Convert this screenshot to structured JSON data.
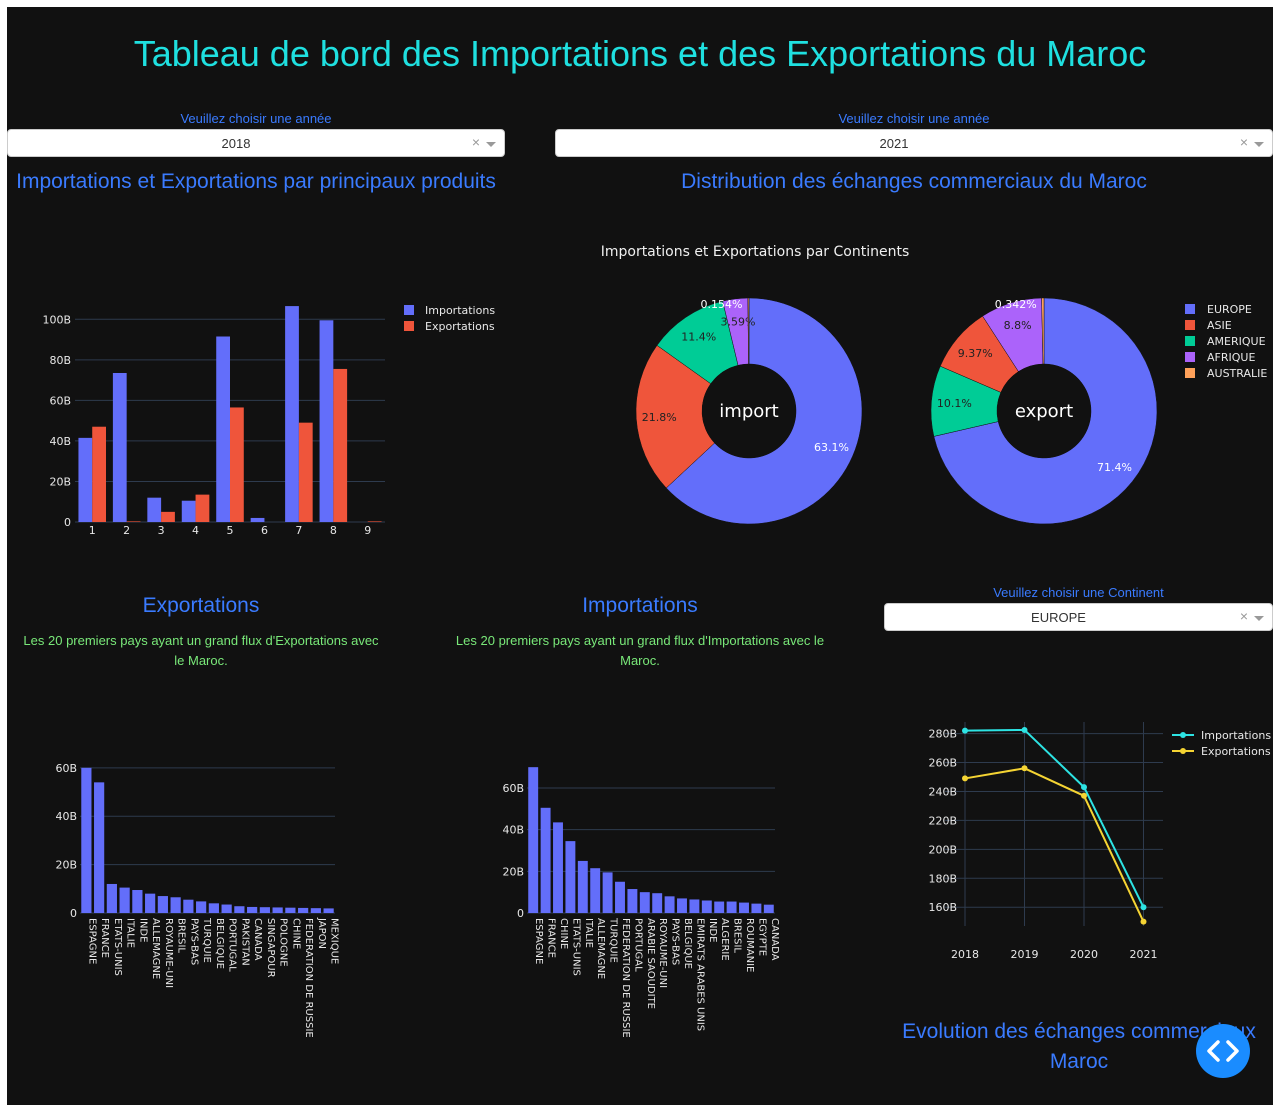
{
  "page": {
    "title": "Tableau de bord des Importations et des Exportations du Maroc"
  },
  "dropdown_left": {
    "label": "Veuillez choisir une année",
    "value": "2018"
  },
  "dropdown_right": {
    "label": "Veuillez choisir une année",
    "value": "2021"
  },
  "dropdown_continent": {
    "label": "Veuillez choisir une Continent",
    "value": "EUROPE"
  },
  "sections": {
    "products_title": "Importations et Exportations par principaux produits",
    "distribution_title": "Distribution des échanges commerciaux du Maroc",
    "exports_title": "Exportations",
    "exports_subtitle": "Les 20 premiers pays ayant un grand flux d'Exportations avec le Maroc.",
    "imports_title": "Importations",
    "imports_subtitle": "Les 20 premiers pays ayant un grand flux d'Importations avec le Maroc.",
    "evolution_title": "Evolution des échanges commerciaux Maroc"
  },
  "colors": {
    "import": "#636efa",
    "export": "#ef553b",
    "amerique": "#00cc96",
    "afrique": "#ab63fa",
    "australie": "#ffa15a",
    "line_import": "#2de3e3",
    "line_export": "#f5d433",
    "title": "#1fe0e0",
    "section": "#3a7bff",
    "subtitle": "#79e879"
  },
  "chart_data": [
    {
      "type": "bar",
      "categories": [
        "1",
        "2",
        "3",
        "4",
        "5",
        "6",
        "7",
        "8",
        "9"
      ],
      "series": [
        {
          "name": "Importations",
          "values": [
            41.5,
            73.5,
            12,
            10.5,
            91.5,
            2,
            106.5,
            99.5,
            0
          ]
        },
        {
          "name": "Exportations",
          "values": [
            47,
            0.3,
            5,
            13.5,
            56.5,
            0,
            49,
            75.5,
            0.3
          ]
        }
      ],
      "ylim": [
        0,
        110
      ],
      "yticks": [
        "0",
        "20B",
        "40B",
        "60B",
        "80B",
        "100B"
      ],
      "legend": "top-right"
    },
    {
      "type": "pie",
      "title": "Importations et Exportations par Continents",
      "charts": [
        {
          "center_label": "import",
          "labels": [
            "EUROPE",
            "ASIE",
            "AMERIQUE",
            "AFRIQUE",
            "AUSTRALIE"
          ],
          "values": [
            63.1,
            21.8,
            11.4,
            3.59,
            0.154
          ],
          "value_labels": [
            "63.1%",
            "21.8%",
            "11.4%",
            "3.59%",
            "0.154%"
          ]
        },
        {
          "center_label": "export",
          "labels": [
            "EUROPE",
            "ASIE",
            "AMERIQUE",
            "AFRIQUE",
            "AUSTRALIE"
          ],
          "values": [
            71.4,
            9.37,
            10.1,
            8.8,
            0.342
          ],
          "value_labels": [
            "71.4%",
            "9.37%",
            "10.1%",
            "8.8%",
            "0.342%"
          ]
        }
      ],
      "legend": [
        "EUROPE",
        "ASIE",
        "AMERIQUE",
        "AFRIQUE",
        "AUSTRALIE"
      ]
    },
    {
      "type": "bar",
      "categories": [
        "ESPAGNE",
        "FRANCE",
        "ETATS-UNIS",
        "ITALIE",
        "INDE",
        "ALLEMAGNE",
        "ROYAUME-UNI",
        "BRESIL",
        "PAYS-BAS",
        "TURQUIE",
        "BELGIQUE",
        "PORTUGAL",
        "PAKISTAN",
        "CANADA",
        "SINGAPOUR",
        "POLOGNE",
        "CHINE",
        "FEDERATION DE RUSSIE",
        "JAPON",
        "MEXIQUE"
      ],
      "values": [
        60,
        54,
        12,
        10.5,
        9.5,
        8,
        7,
        6.5,
        5.5,
        4.8,
        4,
        3.5,
        2.8,
        2.5,
        2.4,
        2.3,
        2.2,
        2.1,
        2,
        1.9
      ],
      "ylim": [
        0,
        62
      ],
      "yticks": [
        "0",
        "20B",
        "40B",
        "60B"
      ]
    },
    {
      "type": "bar",
      "categories": [
        "ESPAGNE",
        "FRANCE",
        "CHINE",
        "ETATS-UNIS",
        "ITALIE",
        "ALLEMAGNE",
        "TURQUIE",
        "FEDERATION DE RUSSIE",
        "PORTUGAL",
        "ARABIE SAOUDITE",
        "ROYAUME-UNI",
        "PAYS-BAS",
        "BELGIQUE",
        "EMIRATS ARABES UNIS",
        "INDE",
        "ALGERIE",
        "BRESIL",
        "ROUMANIE",
        "EGYPTE",
        "CANADA"
      ],
      "values": [
        70,
        50.5,
        43.5,
        34.5,
        25,
        21.5,
        19.5,
        15,
        11.5,
        10,
        9.5,
        8,
        7,
        6.5,
        6,
        5.5,
        5.5,
        5,
        4.5,
        4
      ],
      "ylim": [
        0,
        72
      ],
      "yticks": [
        "0",
        "20B",
        "40B",
        "60B"
      ]
    },
    {
      "type": "line",
      "x": [
        "2018",
        "2019",
        "2020",
        "2021"
      ],
      "series": [
        {
          "name": "Importations",
          "values": [
            282,
            282.5,
            243,
            160
          ]
        },
        {
          "name": "Exportations",
          "values": [
            249,
            256,
            237,
            150
          ]
        }
      ],
      "ylim": [
        147,
        288
      ],
      "yticks": [
        "160B",
        "180B",
        "200B",
        "220B",
        "240B",
        "260B",
        "280B"
      ],
      "legend": "top-right"
    }
  ],
  "fab": {
    "icon": "code-icon"
  }
}
